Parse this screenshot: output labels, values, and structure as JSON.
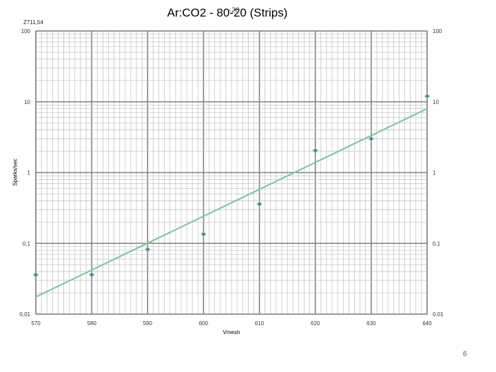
{
  "title": "Ar:CO2 - 80-20 (Strips)",
  "title_overlap_text": "-20",
  "corner_label": "Z711,54",
  "page_number": "6",
  "chart_data": {
    "type": "scatter",
    "title": "Ar:CO2 - 80-20 (Strips)",
    "xlabel": "Vmesh",
    "ylabel": "Sparks/sec",
    "xlim": [
      570,
      640
    ],
    "ylim": [
      0.01,
      100
    ],
    "yscale": "log",
    "x_ticks": [
      "570",
      "580",
      "590",
      "600",
      "610",
      "620",
      "630",
      "640"
    ],
    "y_ticks_left": [
      "100",
      "10",
      "1",
      "0,1",
      "0,01"
    ],
    "y_ticks_right": [
      "100",
      "10",
      "1",
      "0,1",
      "0,01"
    ],
    "grid": true,
    "legend": "none",
    "series": [
      {
        "points": [
          {
            "x": 570,
            "y": 0.036
          },
          {
            "x": 580,
            "y": 0.036
          },
          {
            "x": 590,
            "y": 0.082
          },
          {
            "x": 600,
            "y": 0.135
          },
          {
            "x": 610,
            "y": 0.36
          },
          {
            "x": 620,
            "y": 2.05
          },
          {
            "x": 630,
            "y": 3.0
          },
          {
            "x": 640,
            "y": 12.0
          }
        ],
        "color_outer": "#8ea9d8",
        "color_inner": "#2e9b6e"
      }
    ],
    "trendline": {
      "type": "exponential",
      "from": {
        "x": 570,
        "y": 0.0175
      },
      "to": {
        "x": 640,
        "y": 8.0
      },
      "color": "#7ec8a0"
    }
  }
}
